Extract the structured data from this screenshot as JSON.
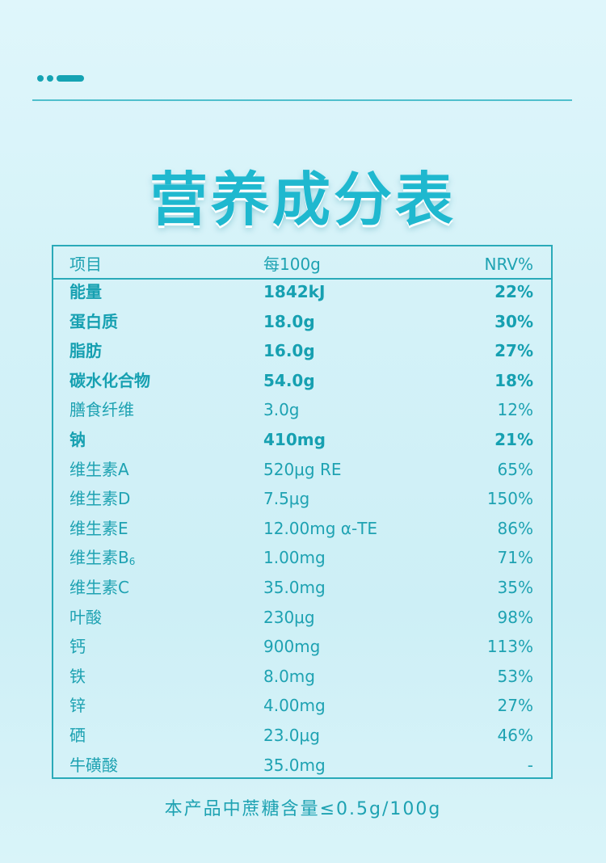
{
  "title": "营养成分表",
  "header": {
    "item": "项目",
    "per": "每100g",
    "nrv": "NRV%"
  },
  "rows": [
    {
      "name": "能量",
      "sub": "",
      "value": "1842kJ",
      "nrv": "22%",
      "bold": true
    },
    {
      "name": "蛋白质",
      "sub": "",
      "value": "18.0g",
      "nrv": "30%",
      "bold": true
    },
    {
      "name": "脂肪",
      "sub": "",
      "value": "16.0g",
      "nrv": "27%",
      "bold": true
    },
    {
      "name": "碳水化合物",
      "sub": "",
      "value": "54.0g",
      "nrv": "18%",
      "bold": true
    },
    {
      "name": "膳食纤维",
      "sub": "",
      "value": "3.0g",
      "nrv": "12%",
      "bold": false
    },
    {
      "name": "钠",
      "sub": "",
      "value": "410mg",
      "nrv": "21%",
      "bold": true
    },
    {
      "name": "维生素A",
      "sub": "",
      "value": "520μg RE",
      "nrv": "65%",
      "bold": false
    },
    {
      "name": "维生素D",
      "sub": "",
      "value": "7.5μg",
      "nrv": "150%",
      "bold": false
    },
    {
      "name": "维生素E",
      "sub": "",
      "value": "12.00mg α-TE",
      "nrv": "86%",
      "bold": false
    },
    {
      "name": "维生素B",
      "sub": "6",
      "value": "1.00mg",
      "nrv": "71%",
      "bold": false
    },
    {
      "name": "维生素C",
      "sub": "",
      "value": "35.0mg",
      "nrv": "35%",
      "bold": false
    },
    {
      "name": "叶酸",
      "sub": "",
      "value": "230μg",
      "nrv": "98%",
      "bold": false
    },
    {
      "name": "钙",
      "sub": "",
      "value": "900mg",
      "nrv": "113%",
      "bold": false
    },
    {
      "name": "铁",
      "sub": "",
      "value": "8.0mg",
      "nrv": "53%",
      "bold": false
    },
    {
      "name": "锌",
      "sub": "",
      "value": "4.00mg",
      "nrv": "27%",
      "bold": false
    },
    {
      "name": "硒",
      "sub": "",
      "value": "23.0μg",
      "nrv": "46%",
      "bold": false
    },
    {
      "name": "牛磺酸",
      "sub": "",
      "value": "35.0mg",
      "nrv": "-",
      "bold": false
    }
  ],
  "footer": "本产品中蔗糖含量≤0.5g/100g"
}
